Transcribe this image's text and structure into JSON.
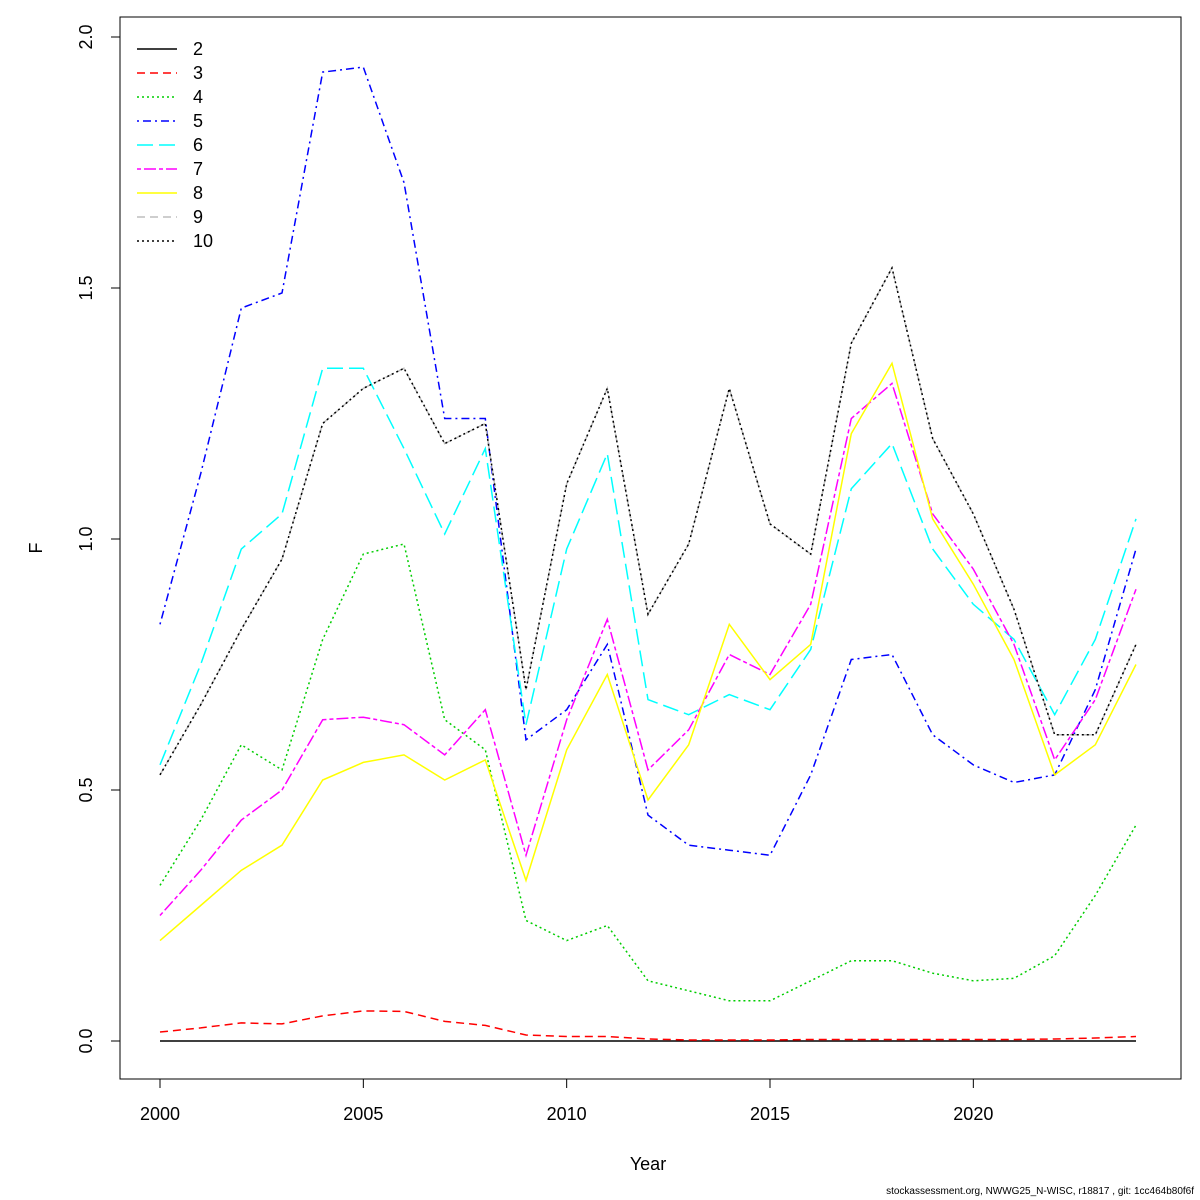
{
  "chart_data": {
    "type": "line",
    "title": "",
    "xlabel": "Year",
    "ylabel": "F",
    "xlim": [
      2000,
      2024
    ],
    "ylim": [
      0,
      2.0
    ],
    "x_ticks": [
      2000,
      2005,
      2010,
      2015,
      2020
    ],
    "y_ticks": [
      "0.0",
      "0.5",
      "1.0",
      "1.5",
      "2.0"
    ],
    "legend_position": "top-left",
    "grid": false,
    "x": [
      2000,
      2001,
      2002,
      2003,
      2004,
      2005,
      2006,
      2007,
      2008,
      2009,
      2010,
      2011,
      2012,
      2013,
      2014,
      2015,
      2016,
      2017,
      2018,
      2019,
      2020,
      2021,
      2022,
      2023,
      2024
    ],
    "series": [
      {
        "name": "2",
        "color": "#000000",
        "dash": "solid",
        "values": [
          0,
          0,
          0,
          0,
          0,
          0,
          0,
          0,
          0,
          0,
          0,
          0,
          0,
          0,
          0,
          0,
          0,
          0,
          0,
          0,
          0,
          0,
          0,
          0,
          0
        ]
      },
      {
        "name": "3",
        "color": "#ff0000",
        "dash": "dashed",
        "values": [
          0.018,
          0.026,
          0.036,
          0.034,
          0.05,
          0.06,
          0.059,
          0.039,
          0.031,
          0.012,
          0.009,
          0.009,
          0.004,
          0.002,
          0.002,
          0.002,
          0.003,
          0.003,
          0.003,
          0.003,
          0.003,
          0.003,
          0.004,
          0.006,
          0.009
        ]
      },
      {
        "name": "4",
        "color": "#00cd00",
        "dash": "dotted",
        "values": [
          0.31,
          0.44,
          0.59,
          0.54,
          0.8,
          0.97,
          0.99,
          0.64,
          0.58,
          0.24,
          0.2,
          0.23,
          0.12,
          0.1,
          0.08,
          0.08,
          0.12,
          0.16,
          0.16,
          0.135,
          0.12,
          0.125,
          0.17,
          0.29,
          0.43
        ]
      },
      {
        "name": "5",
        "color": "#0000ff",
        "dash": "dotdash",
        "values": [
          0.83,
          1.13,
          1.46,
          1.49,
          1.93,
          1.94,
          1.71,
          1.24,
          1.24,
          0.6,
          0.66,
          0.79,
          0.45,
          0.39,
          0.38,
          0.37,
          0.53,
          0.76,
          0.77,
          0.61,
          0.55,
          0.515,
          0.53,
          0.7,
          0.98
        ]
      },
      {
        "name": "6",
        "color": "#00ffff",
        "dash": "longdash",
        "values": [
          0.55,
          0.75,
          0.98,
          1.05,
          1.34,
          1.34,
          1.18,
          1.01,
          1.18,
          0.63,
          0.98,
          1.17,
          0.68,
          0.65,
          0.69,
          0.66,
          0.78,
          1.1,
          1.19,
          0.98,
          0.87,
          0.8,
          0.65,
          0.8,
          1.04
        ]
      },
      {
        "name": "7",
        "color": "#ff00ff",
        "dash": "twodash",
        "values": [
          0.25,
          0.34,
          0.44,
          0.5,
          0.64,
          0.645,
          0.63,
          0.57,
          0.66,
          0.37,
          0.64,
          0.84,
          0.54,
          0.62,
          0.77,
          0.73,
          0.87,
          1.24,
          1.31,
          1.05,
          0.94,
          0.79,
          0.56,
          0.68,
          0.9
        ]
      },
      {
        "name": "8",
        "color": "#ffff00",
        "dash": "solid",
        "values": [
          0.2,
          0.27,
          0.34,
          0.39,
          0.52,
          0.555,
          0.57,
          0.52,
          0.56,
          0.32,
          0.58,
          0.73,
          0.48,
          0.59,
          0.83,
          0.72,
          0.79,
          1.21,
          1.35,
          1.04,
          0.91,
          0.76,
          0.53,
          0.59,
          0.75
        ]
      },
      {
        "name": "9",
        "color": "#bebebe",
        "dash": "dashed",
        "values": [
          0.53,
          0.67,
          0.82,
          0.96,
          1.23,
          1.3,
          1.34,
          1.19,
          1.23,
          0.7,
          1.11,
          1.3,
          0.85,
          0.99,
          1.3,
          1.03,
          0.97,
          1.39,
          1.54,
          1.2,
          1.05,
          0.86,
          0.61,
          0.61,
          0.79
        ]
      },
      {
        "name": "10",
        "color": "#000000",
        "dash": "dotted",
        "values": [
          0.53,
          0.67,
          0.82,
          0.96,
          1.23,
          1.3,
          1.34,
          1.19,
          1.23,
          0.7,
          1.11,
          1.3,
          0.85,
          0.99,
          1.3,
          1.03,
          0.97,
          1.39,
          1.54,
          1.2,
          1.05,
          0.86,
          0.61,
          0.61,
          0.79
        ]
      }
    ]
  },
  "footer": "stockassessment.org, NWWG25_N-WISC, r18817 , git: 1cc464b80f6f"
}
